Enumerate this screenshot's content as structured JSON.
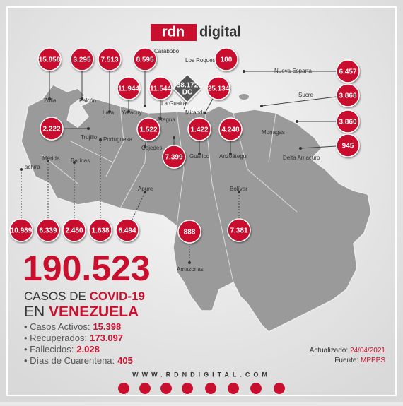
{
  "brand": {
    "prefix": "rdn",
    "suffix": "digital"
  },
  "map": {
    "labels": [
      "Carabobo",
      "Los Roques",
      "Nueva Esparta",
      "Zulia",
      "Falcón",
      "Lara",
      "Yaracuy",
      "La Guaira",
      "Miranda",
      "Sucre",
      "Aragua",
      "Trujillo",
      "Portuguesa",
      "Cojedes",
      "Monagas",
      "Guárico",
      "Anzoátegui",
      "Delta Amacuro",
      "Táchira",
      "Mérida",
      "Barinas",
      "Apure",
      "Bolívar",
      "Amazonas"
    ],
    "counts": [
      "15.858",
      "3.295",
      "7.513",
      "8.595",
      "180",
      "11.944",
      "11.544",
      "25.134",
      "6.457",
      "3.868",
      "3.860",
      "945",
      "2.222",
      "1.522",
      "1.422",
      "4.248",
      "7.399",
      "10.989",
      "6.339",
      "2.450",
      "1.638",
      "6.494",
      "888",
      "7.381"
    ],
    "capital": {
      "count": "38.172",
      "label": "DC"
    }
  },
  "summary": {
    "total": "190.523",
    "line1": "CASOS DE",
    "line1_bold": "COVID-19",
    "line2": "EN",
    "line2_bold": "VENEZUELA",
    "stats": [
      {
        "label": "Casos Activos:",
        "value": "15.398"
      },
      {
        "label": "Recuperados:",
        "value": "173.097"
      },
      {
        "label": "Fallecidos:",
        "value": "2.028"
      },
      {
        "label": "Días de Cuarentena:",
        "value": "405"
      }
    ]
  },
  "update": {
    "label": "Actualizado:",
    "date": "24/04/2021",
    "source_label": "Fuente:",
    "source": "MPPPS"
  },
  "website": "WWW.RDNDIGITAL.COM"
}
